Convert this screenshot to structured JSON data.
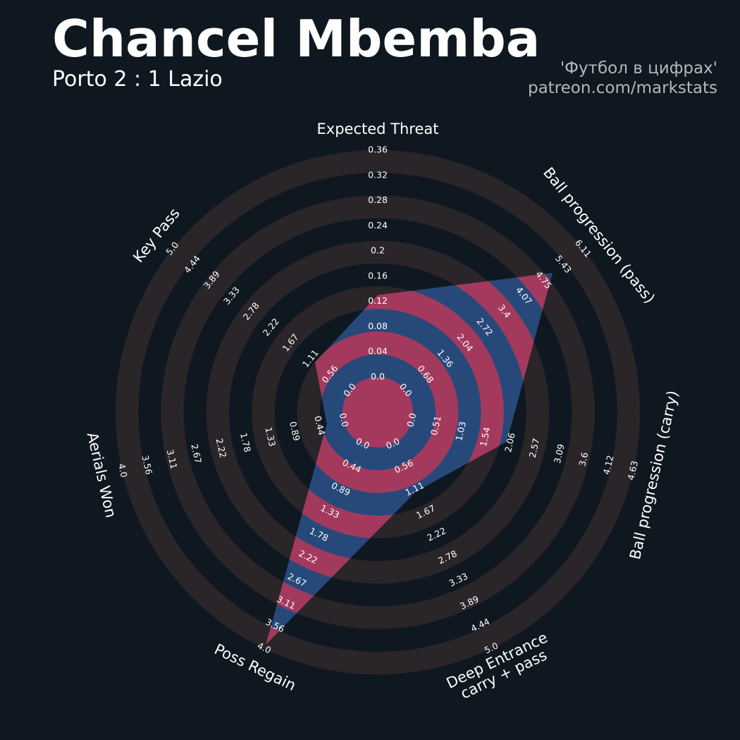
{
  "chart_data": {
    "type": "radar",
    "title": "Chancel Mbemba",
    "subtitle": "Porto 2 : 1 Lazio",
    "credits": [
      "'Футбол в цифрах'",
      "patreon.com/markstats"
    ],
    "categories": [
      "Expected Threat",
      "Ball progression (pass)",
      "Ball progression (carry)",
      "Deep Entrance\ncarry + pass",
      "Poss Regain",
      "Aerials Won",
      "Key Pass"
    ],
    "values": [
      0.13,
      5.07,
      1.98,
      1.16,
      3.92,
      0.3,
      0.99
    ],
    "ticks": [
      [
        {
          "value": 0,
          "label": "0.0"
        },
        0.04,
        0.08,
        0.12,
        0.16,
        0.2,
        0.24,
        0.28,
        0.32,
        0.36
      ],
      [
        {
          "value": 0,
          "label": "0.0"
        },
        0.68,
        1.36,
        2.04,
        2.72,
        3.4,
        4.07,
        4.75,
        5.43,
        6.11
      ],
      [
        {
          "value": 0,
          "label": "0.0"
        },
        0.51,
        1.03,
        1.54,
        2.06,
        2.57,
        3.09,
        3.6,
        4.12,
        4.63
      ],
      [
        {
          "value": 0,
          "label": "0.0"
        },
        0.56,
        1.11,
        1.67,
        2.22,
        2.78,
        3.33,
        3.89,
        4.44,
        {
          "value": 5,
          "label": "5.0"
        }
      ],
      [
        {
          "value": 0,
          "label": "0.0"
        },
        0.44,
        0.89,
        1.33,
        1.78,
        2.22,
        2.67,
        3.11,
        3.56,
        {
          "value": 4,
          "label": "4.0"
        }
      ],
      [
        {
          "value": 0,
          "label": "0.0"
        },
        0.44,
        0.89,
        1.33,
        1.78,
        2.22,
        2.67,
        3.11,
        3.56,
        {
          "value": 4,
          "label": "4.0"
        }
      ],
      [
        {
          "value": 0,
          "label": "0.0"
        },
        0.56,
        1.11,
        1.67,
        2.22,
        2.78,
        3.33,
        3.89,
        4.44,
        {
          "value": 5,
          "label": "5.0"
        }
      ]
    ],
    "color": "#27497a",
    "alt_color": "#a33a5e"
  }
}
